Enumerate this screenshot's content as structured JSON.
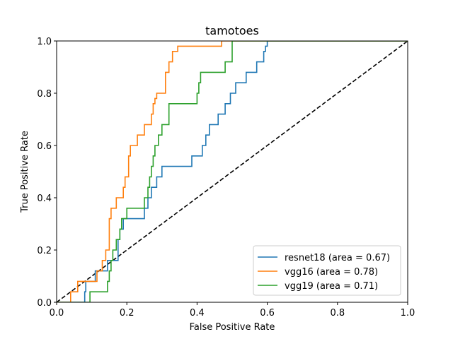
{
  "chart_data": {
    "type": "line",
    "title": "tamotoes",
    "xlabel": "False Positive Rate",
    "ylabel": "True Positive Rate",
    "xlim": [
      0.0,
      1.0
    ],
    "ylim": [
      0.0,
      1.0
    ],
    "x_ticks": [
      0.0,
      0.2,
      0.4,
      0.6,
      0.8,
      1.0
    ],
    "y_ticks": [
      0.0,
      0.2,
      0.4,
      0.6,
      0.8,
      1.0
    ],
    "x_tick_labels": [
      "0.0",
      "0.2",
      "0.4",
      "0.6",
      "0.8",
      "1.0"
    ],
    "y_tick_labels": [
      "0.0",
      "0.2",
      "0.4",
      "0.6",
      "0.8",
      "1.0"
    ],
    "grid": false,
    "legend_position": "lower-right",
    "series": [
      {
        "name": "resnet18 (area = 0.67)",
        "color": "#1f77b4",
        "x": [
          0,
          0.08,
          0.08,
          0.083,
          0.083,
          0.09,
          0.09,
          0.11,
          0.11,
          0.12,
          0.12,
          0.145,
          0.145,
          0.175,
          0.175,
          0.18,
          0.18,
          0.19,
          0.19,
          0.25,
          0.25,
          0.26,
          0.26,
          0.27,
          0.27,
          0.285,
          0.285,
          0.3,
          0.3,
          0.385,
          0.385,
          0.415,
          0.415,
          0.425,
          0.425,
          0.435,
          0.435,
          0.46,
          0.46,
          0.48,
          0.48,
          0.495,
          0.495,
          0.51,
          0.51,
          0.54,
          0.54,
          0.57,
          0.57,
          0.59,
          0.59,
          0.595,
          0.595,
          0.6,
          0.6,
          1.0
        ],
        "y": [
          0,
          0,
          0.04,
          0.04,
          0.08,
          0.08,
          0.08,
          0.08,
          0.12,
          0.12,
          0.12,
          0.12,
          0.16,
          0.16,
          0.24,
          0.24,
          0.28,
          0.28,
          0.32,
          0.32,
          0.36,
          0.36,
          0.4,
          0.4,
          0.44,
          0.44,
          0.48,
          0.48,
          0.52,
          0.52,
          0.56,
          0.56,
          0.6,
          0.6,
          0.64,
          0.64,
          0.68,
          0.68,
          0.72,
          0.72,
          0.76,
          0.76,
          0.8,
          0.8,
          0.84,
          0.84,
          0.88,
          0.88,
          0.92,
          0.92,
          0.96,
          0.96,
          0.98,
          0.98,
          1.0,
          1.0
        ]
      },
      {
        "name": "vgg16 (area = 0.78)",
        "color": "#ff7f0e",
        "x": [
          0,
          0.04,
          0.04,
          0.06,
          0.06,
          0.115,
          0.115,
          0.13,
          0.13,
          0.14,
          0.14,
          0.15,
          0.15,
          0.155,
          0.155,
          0.17,
          0.17,
          0.19,
          0.19,
          0.195,
          0.195,
          0.205,
          0.205,
          0.21,
          0.21,
          0.23,
          0.23,
          0.25,
          0.25,
          0.27,
          0.27,
          0.275,
          0.275,
          0.28,
          0.28,
          0.285,
          0.285,
          0.31,
          0.31,
          0.32,
          0.32,
          0.33,
          0.33,
          0.345,
          0.345,
          0.41,
          0.41,
          0.47,
          0.47,
          0.48,
          0.48,
          1.0
        ],
        "y": [
          0,
          0,
          0.04,
          0.04,
          0.08,
          0.08,
          0.12,
          0.12,
          0.16,
          0.16,
          0.2,
          0.2,
          0.32,
          0.32,
          0.36,
          0.36,
          0.4,
          0.4,
          0.44,
          0.44,
          0.48,
          0.48,
          0.56,
          0.56,
          0.6,
          0.6,
          0.64,
          0.64,
          0.68,
          0.68,
          0.72,
          0.72,
          0.76,
          0.76,
          0.78,
          0.78,
          0.8,
          0.8,
          0.88,
          0.88,
          0.92,
          0.92,
          0.96,
          0.96,
          0.98,
          0.98,
          0.98,
          0.98,
          1.0,
          1.0,
          1.0,
          1.0
        ]
      },
      {
        "name": "vgg19 (area = 0.71)",
        "color": "#2ca02c",
        "x": [
          0,
          0.095,
          0.095,
          0.145,
          0.145,
          0.15,
          0.15,
          0.155,
          0.155,
          0.16,
          0.16,
          0.17,
          0.17,
          0.18,
          0.18,
          0.185,
          0.185,
          0.2,
          0.2,
          0.25,
          0.25,
          0.26,
          0.26,
          0.265,
          0.265,
          0.27,
          0.27,
          0.275,
          0.275,
          0.28,
          0.28,
          0.29,
          0.29,
          0.3,
          0.3,
          0.32,
          0.32,
          0.4,
          0.4,
          0.405,
          0.405,
          0.41,
          0.41,
          0.48,
          0.48,
          0.5,
          0.5,
          1.0
        ],
        "y": [
          0,
          0,
          0.04,
          0.04,
          0.08,
          0.08,
          0.12,
          0.12,
          0.16,
          0.16,
          0.2,
          0.2,
          0.24,
          0.24,
          0.28,
          0.28,
          0.32,
          0.32,
          0.36,
          0.36,
          0.4,
          0.4,
          0.44,
          0.44,
          0.48,
          0.48,
          0.52,
          0.52,
          0.56,
          0.56,
          0.6,
          0.6,
          0.64,
          0.64,
          0.68,
          0.68,
          0.76,
          0.76,
          0.8,
          0.8,
          0.84,
          0.84,
          0.88,
          0.88,
          0.92,
          0.92,
          1.0,
          1.0
        ]
      }
    ],
    "reference_line": {
      "x": [
        0.0,
        1.0
      ],
      "y": [
        0.0,
        1.0
      ],
      "color": "#000000",
      "style": "dashed"
    }
  }
}
